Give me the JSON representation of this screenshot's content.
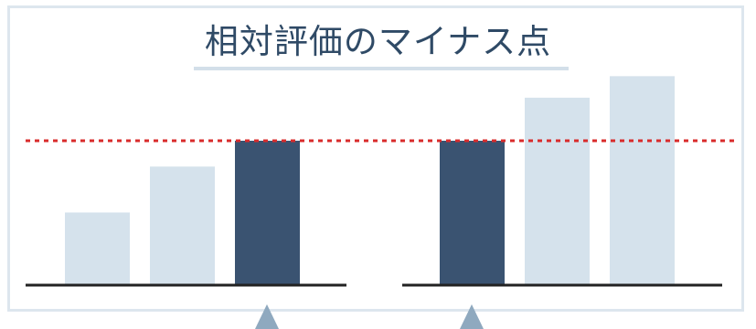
{
  "title": "相対評価のマイナス点",
  "colors": {
    "highlight_bar": "#3a5371",
    "other_bar": "#d5e2ec",
    "reference_line": "#d92b2b",
    "baseline": "#222222",
    "arrow": "#8fa9bf",
    "frame_border": "#dde6ee",
    "title_text": "#2f4a66"
  },
  "groups": [
    {
      "name": "left-group",
      "bars": [
        {
          "level": 0.5,
          "highlight": false
        },
        {
          "level": 0.82,
          "highlight": false
        },
        {
          "level": 1.0,
          "highlight": true
        }
      ]
    },
    {
      "name": "right-group",
      "bars": [
        {
          "level": 1.0,
          "highlight": true
        },
        {
          "level": 1.3,
          "highlight": false
        },
        {
          "level": 1.45,
          "highlight": false
        }
      ]
    }
  ]
}
